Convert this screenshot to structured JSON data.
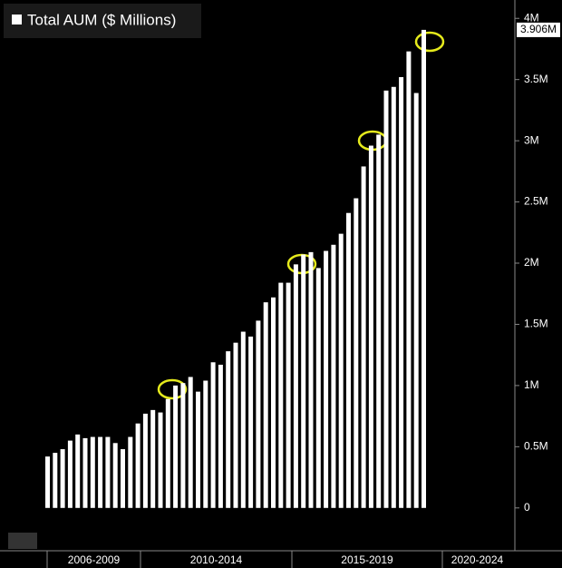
{
  "chart_data": {
    "type": "bar",
    "title": "Total AUM ($ Millions)",
    "color": "#ffffff",
    "categories": [
      null,
      null,
      null,
      null,
      null,
      null,
      null,
      null,
      null,
      null,
      null,
      null,
      null,
      null,
      null,
      null,
      null,
      null,
      null,
      null,
      null,
      null,
      null,
      null,
      null,
      null,
      null,
      null,
      null,
      null,
      null,
      null,
      null,
      null,
      null,
      null,
      null,
      null,
      null,
      null,
      null,
      null,
      null,
      null,
      null,
      null,
      null,
      null,
      null,
      null,
      null
    ],
    "values": [
      0.42,
      0.45,
      0.48,
      0.55,
      0.6,
      0.57,
      0.58,
      0.58,
      0.58,
      0.53,
      0.48,
      0.58,
      0.69,
      0.77,
      0.8,
      0.78,
      0.89,
      1.0,
      1.02,
      1.07,
      0.95,
      1.04,
      1.19,
      1.17,
      1.28,
      1.35,
      1.44,
      1.4,
      1.53,
      1.68,
      1.72,
      1.84,
      1.84,
      1.99,
      2.07,
      2.09,
      1.96,
      2.1,
      2.15,
      2.24,
      2.41,
      2.53,
      2.79,
      2.96,
      3.05,
      3.41,
      3.44,
      3.52,
      3.73,
      3.39,
      3.906
    ],
    "last_value_label": "3.906M",
    "x_groups": [
      "2006-2009",
      "2010-2014",
      "2015-2019",
      "2020-2024"
    ],
    "ylim": [
      -0.35,
      4.15
    ],
    "yticks": [
      0,
      {
        "value": 0.5,
        "label": "0.5M"
      },
      {
        "value": 1,
        "label": "1M"
      },
      {
        "value": 1.5,
        "label": "1.5M"
      },
      {
        "value": 2,
        "label": "2M"
      },
      {
        "value": 2.5,
        "label": "2.5M"
      },
      {
        "value": 3,
        "label": "3M"
      },
      {
        "value": 3.5,
        "label": "3.5M"
      },
      {
        "value": 4,
        "label": "4M"
      }
    ]
  }
}
